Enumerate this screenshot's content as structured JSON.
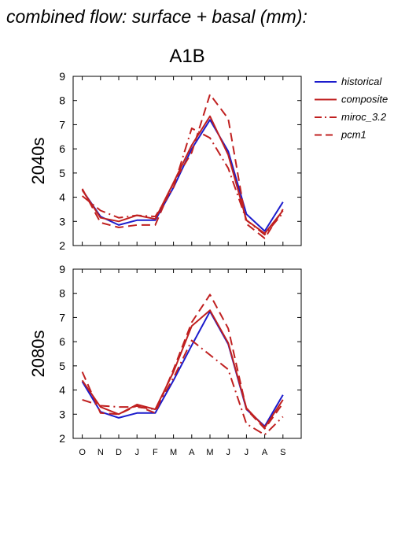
{
  "figure": {
    "title": "combined flow: surface + basal (mm):",
    "scenario": "A1B"
  },
  "chart_data": [
    {
      "type": "line",
      "period": "2040s",
      "ylabel": "2040s",
      "categories": [
        "O",
        "N",
        "D",
        "J",
        "F",
        "M",
        "A",
        "M",
        "J",
        "J",
        "A",
        "S"
      ],
      "ylim": [
        2,
        9
      ],
      "yticks": [
        2,
        3,
        4,
        5,
        6,
        7,
        8,
        9
      ],
      "series": [
        {
          "name": "historical",
          "color": "#1c1ccc",
          "dash": "solid",
          "values": [
            4.3,
            3.2,
            2.85,
            3.05,
            3.05,
            4.4,
            6.0,
            7.2,
            5.9,
            3.3,
            2.6,
            3.8
          ]
        },
        {
          "name": "composite",
          "color": "#c02020",
          "dash": "solid",
          "values": [
            4.3,
            3.15,
            3.0,
            3.25,
            3.1,
            4.6,
            6.15,
            7.35,
            5.75,
            3.05,
            2.5,
            3.45
          ]
        },
        {
          "name": "miroc_3.2",
          "color": "#c02020",
          "dash": "dashdot",
          "values": [
            4.05,
            3.45,
            3.15,
            3.25,
            3.2,
            4.4,
            6.85,
            6.45,
            5.2,
            3.05,
            2.45,
            3.35
          ]
        },
        {
          "name": "pcm1",
          "color": "#c02020",
          "dash": "dash",
          "values": [
            4.35,
            2.95,
            2.75,
            2.85,
            2.85,
            4.6,
            5.85,
            8.25,
            7.25,
            2.9,
            2.3,
            3.5
          ]
        }
      ]
    },
    {
      "type": "line",
      "period": "2080s",
      "ylabel": "2080s",
      "categories": [
        "O",
        "N",
        "D",
        "J",
        "F",
        "M",
        "A",
        "M",
        "J",
        "J",
        "A",
        "S"
      ],
      "ylim": [
        2,
        9
      ],
      "yticks": [
        2,
        3,
        4,
        5,
        6,
        7,
        8,
        9
      ],
      "series": [
        {
          "name": "historical",
          "color": "#1c1ccc",
          "dash": "solid",
          "values": [
            4.35,
            3.1,
            2.85,
            3.05,
            3.05,
            4.4,
            5.85,
            7.25,
            5.9,
            3.2,
            2.5,
            3.8
          ]
        },
        {
          "name": "composite",
          "color": "#c02020",
          "dash": "solid",
          "values": [
            4.4,
            3.3,
            3.0,
            3.4,
            3.2,
            4.75,
            6.65,
            7.3,
            5.95,
            3.25,
            2.45,
            3.6
          ]
        },
        {
          "name": "miroc_3.2",
          "color": "#c02020",
          "dash": "dashdot",
          "values": [
            3.6,
            3.35,
            3.3,
            3.3,
            3.2,
            4.5,
            6.05,
            5.45,
            4.85,
            2.6,
            2.15,
            2.9
          ]
        },
        {
          "name": "pcm1",
          "color": "#c02020",
          "dash": "dash",
          "values": [
            4.75,
            3.05,
            3.0,
            3.35,
            3.05,
            4.85,
            6.8,
            7.95,
            6.55,
            3.2,
            2.4,
            3.45
          ]
        }
      ]
    }
  ],
  "legend": {
    "placement": "right-of-top-panel",
    "entries": [
      {
        "label": "historical",
        "color": "#1c1ccc",
        "dash": "solid"
      },
      {
        "label": "composite",
        "color": "#c02020",
        "dash": "solid"
      },
      {
        "label": "miroc_3.2",
        "color": "#c02020",
        "dash": "dashdot"
      },
      {
        "label": "pcm1",
        "color": "#c02020",
        "dash": "dash"
      }
    ]
  }
}
